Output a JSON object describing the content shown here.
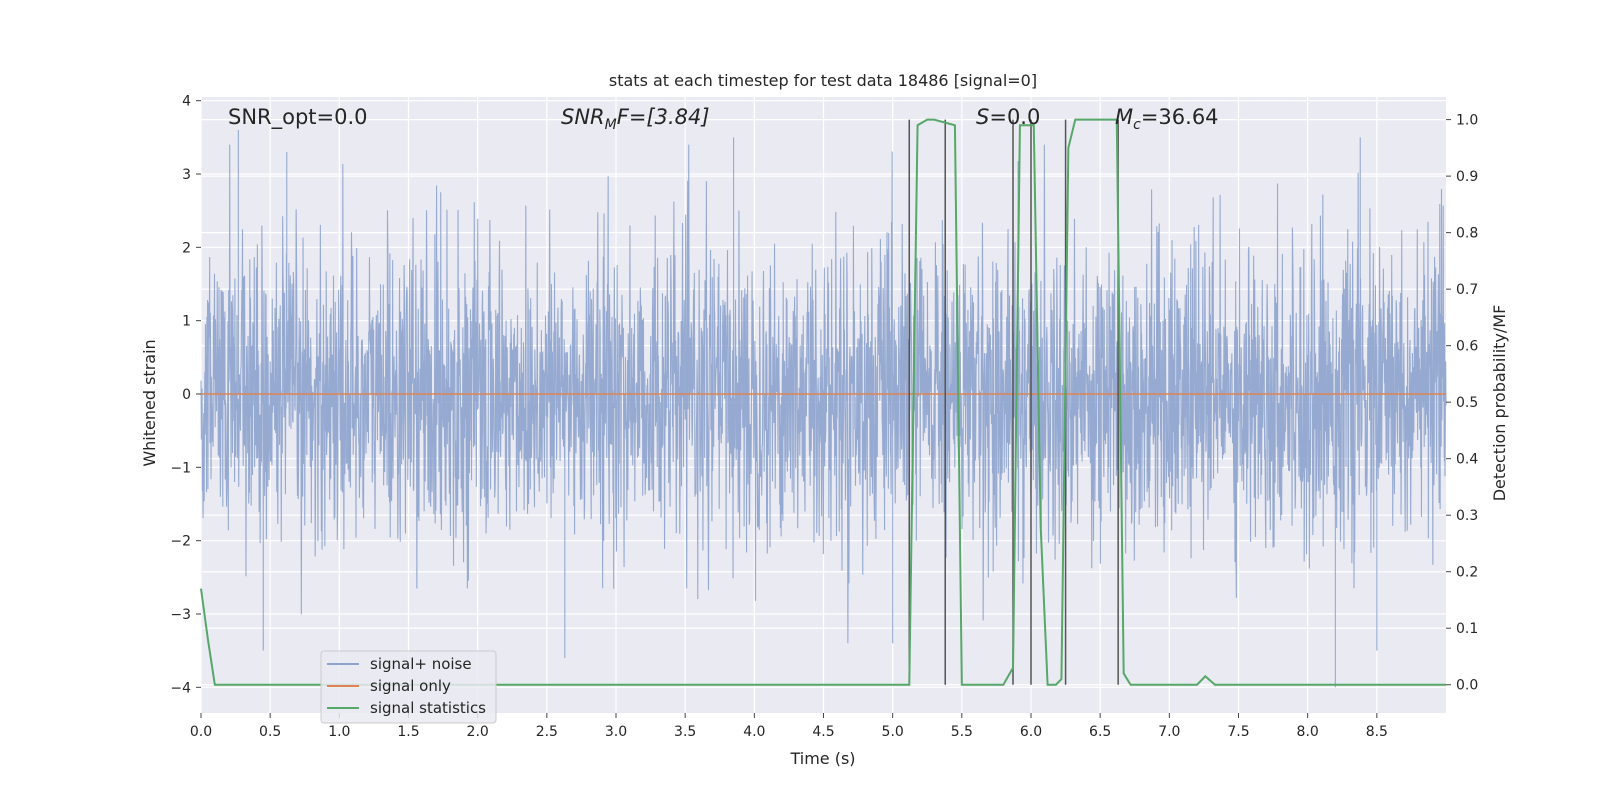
{
  "chart_data": {
    "type": "line",
    "title": "stats at each timestep for test data 18486 [signal=0]",
    "xlabel": "Time (s)",
    "ylabel": "Whitened strain",
    "ylabel_right": "Detection probability/MF",
    "xlim": [
      0,
      9
    ],
    "ylim": [
      -4.35,
      4.05
    ],
    "ylim_right": [
      -0.05,
      1.04
    ],
    "x_ticks": [
      "0.0",
      "0.5",
      "1.0",
      "1.5",
      "2.0",
      "2.5",
      "3.0",
      "3.5",
      "4.0",
      "4.5",
      "5.0",
      "5.5",
      "6.0",
      "6.5",
      "7.0",
      "7.5",
      "8.0",
      "8.5"
    ],
    "y_ticks": [
      "−4",
      "−3",
      "−2",
      "−1",
      "0",
      "1",
      "2",
      "3",
      "4"
    ],
    "y_ticks_right": [
      "0.0",
      "0.1",
      "0.2",
      "0.3",
      "0.4",
      "0.5",
      "0.6",
      "0.7",
      "0.8",
      "0.9",
      "1.0"
    ],
    "grid": true,
    "legend_position": "lower-left",
    "annotations": {
      "snr_opt": "SNR_opt=0.0",
      "snr_mf_base": "SNR",
      "snr_mf_sub": "M",
      "snr_mf_tail": "F=[3.84]",
      "s_italic": "S",
      "s_tail": "=0.0",
      "mc_base": "M",
      "mc_sub": "c",
      "mc_tail": "=36.64"
    },
    "series": [
      {
        "name": "signal+ noise",
        "color": "#8da3cd",
        "axis": "left",
        "style": "dense noise, approx. Gaussian, range about -4 to 3.6",
        "peaks": [
          {
            "x": 0.27,
            "y": 3.6
          },
          {
            "x": 0.62,
            "y": 3.3
          },
          {
            "x": 0.45,
            "y": -3.5
          },
          {
            "x": 2.63,
            "y": -3.6
          },
          {
            "x": 3.85,
            "y": 3.5
          },
          {
            "x": 5.0,
            "y": -3.4
          },
          {
            "x": 8.2,
            "y": -4.0
          },
          {
            "x": 8.38,
            "y": 3.5
          },
          {
            "x": 8.5,
            "y": -3.5
          }
        ]
      },
      {
        "name": "signal only",
        "color": "#dd8452",
        "axis": "left",
        "x": [
          0,
          9
        ],
        "y": [
          0,
          0
        ]
      },
      {
        "name": "signal statistics",
        "color": "#55a868",
        "axis": "right",
        "x": [
          0.0,
          0.05,
          0.1,
          0.2,
          0.5,
          1.0,
          2.0,
          3.0,
          4.0,
          5.0,
          5.05,
          5.12,
          5.18,
          5.25,
          5.3,
          5.45,
          5.5,
          5.55,
          5.6,
          5.7,
          5.8,
          5.87,
          5.92,
          5.97,
          6.02,
          6.07,
          6.12,
          6.18,
          6.22,
          6.27,
          6.32,
          6.38,
          6.45,
          6.55,
          6.62,
          6.67,
          6.72,
          6.8,
          7.0,
          7.2,
          7.26,
          7.33,
          7.4,
          7.6,
          8.0,
          8.5,
          8.85,
          8.92,
          9.0
        ],
        "y": [
          0.17,
          0.08,
          0.0,
          0.0,
          0.0,
          0.0,
          0.0,
          0.0,
          0.0,
          0.0,
          0.0,
          0.0,
          0.99,
          1.0,
          1.0,
          0.99,
          0.0,
          0.0,
          0.0,
          0.0,
          0.0,
          0.03,
          0.99,
          0.99,
          0.99,
          0.28,
          0.0,
          0.0,
          0.01,
          0.95,
          1.0,
          1.0,
          1.0,
          1.0,
          1.0,
          0.02,
          0.0,
          0.0,
          0.0,
          0.0,
          0.015,
          0.0,
          0.0,
          0.0,
          0.0,
          0.0,
          0.0,
          0.0,
          0.0
        ]
      }
    ],
    "vlines": [
      5.12,
      5.38,
      5.87,
      6.0,
      6.25,
      6.63
    ]
  }
}
